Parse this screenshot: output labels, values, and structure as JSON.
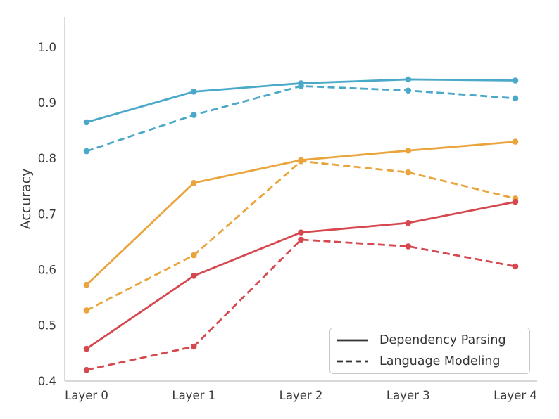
{
  "chart_data": {
    "type": "line",
    "title": "",
    "xlabel": "",
    "ylabel": "Accuracy",
    "categories": [
      "Layer 0",
      "Layer 1",
      "Layer 2",
      "Layer 3",
      "Layer 4"
    ],
    "ylim": [
      0.4,
      1.0
    ],
    "yticks": [
      1.0,
      0.9,
      0.8,
      0.7,
      0.6,
      0.5,
      0.4
    ],
    "ytick_labels": [
      "1.0",
      "0.9",
      "0.8",
      "0.7",
      "0.6",
      "0.5",
      "0.4"
    ],
    "grid": false,
    "axis_color": "#cbcbcb",
    "text_color": "#3a3a3a",
    "legend": {
      "position": "lower right",
      "sample_color": "#333333",
      "entries": [
        {
          "label": "Dependency Parsing",
          "line_style": "solid"
        },
        {
          "label": "Language Modeling",
          "line_style": "dashed"
        }
      ]
    },
    "series": [
      {
        "name": "cyan-dependency-parsing",
        "task": "Dependency Parsing",
        "color": "#4aa9c8",
        "style": "solid",
        "values": [
          0.865,
          0.92,
          0.935,
          0.942,
          0.94
        ]
      },
      {
        "name": "cyan-language-modeling",
        "task": "Language Modeling",
        "color": "#4aa9c8",
        "style": "dashed",
        "values": [
          0.813,
          0.878,
          0.93,
          0.922,
          0.908
        ]
      },
      {
        "name": "orange-dependency-parsing",
        "task": "Dependency Parsing",
        "color": "#e9a43c",
        "style": "solid",
        "values": [
          0.573,
          0.756,
          0.797,
          0.814,
          0.83
        ]
      },
      {
        "name": "orange-language-modeling",
        "task": "Language Modeling",
        "color": "#e9a43c",
        "style": "dashed",
        "values": [
          0.527,
          0.626,
          0.795,
          0.775,
          0.728
        ]
      },
      {
        "name": "red-dependency-parsing",
        "task": "Dependency Parsing",
        "color": "#d6484f",
        "style": "solid",
        "values": [
          0.458,
          0.589,
          0.667,
          0.684,
          0.722
        ]
      },
      {
        "name": "red-language-modeling",
        "task": "Language Modeling",
        "color": "#d6484f",
        "style": "dashed",
        "values": [
          0.42,
          0.462,
          0.654,
          0.642,
          0.606
        ]
      }
    ]
  }
}
